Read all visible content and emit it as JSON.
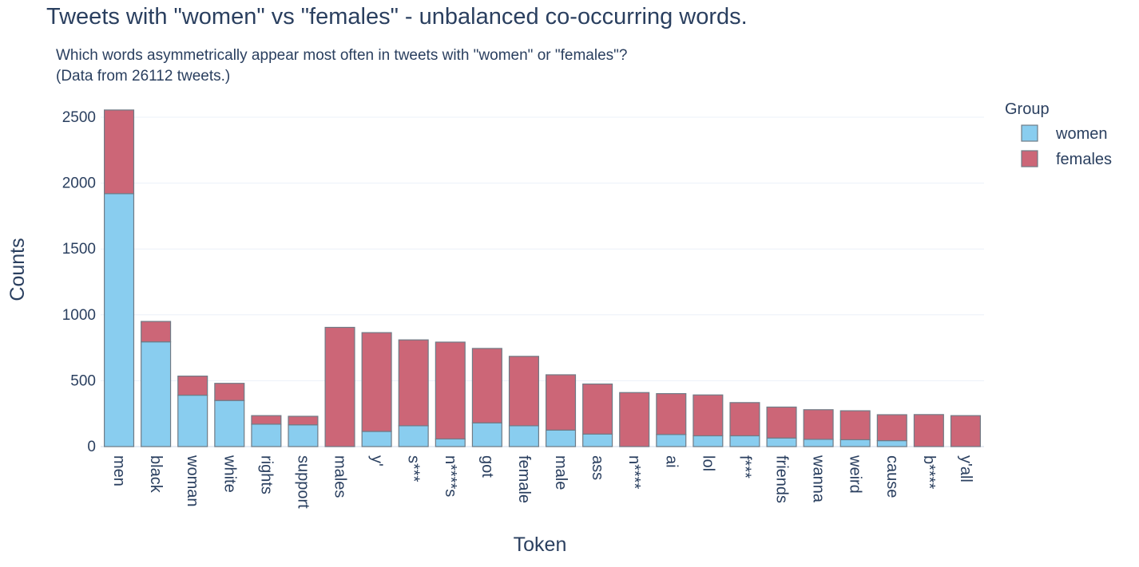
{
  "chart_data": {
    "type": "bar",
    "barmode": "stack",
    "title": "Tweets with \"women\" vs \"females\" - unbalanced co-occurring words.",
    "subtitle_lines": [
      "Which words asymmetrically appear most often in tweets with \"women\" or \"females\"?",
      "(Data from 26112 tweets.)"
    ],
    "xlabel": "Token",
    "ylabel": "Counts",
    "ylim": [
      0,
      2600
    ],
    "yticks": [
      0,
      500,
      1000,
      1500,
      2000,
      2500
    ],
    "grid": true,
    "legend": {
      "title": "Group",
      "placement": "top-right"
    },
    "categories": [
      "men",
      "black",
      "woman",
      "white",
      "rights",
      "support",
      "males",
      "y'",
      "s***",
      "n****s",
      "got",
      "female",
      "male",
      "ass",
      "n****",
      "ai",
      "lol",
      "f***",
      "friends",
      "wanna",
      "weird",
      "cause",
      "b****",
      "y'all"
    ],
    "series": [
      {
        "name": "women",
        "color": "#89CDEF",
        "values": [
          1920,
          795,
          390,
          350,
          170,
          165,
          0,
          115,
          158,
          58,
          180,
          158,
          125,
          95,
          0,
          92,
          82,
          82,
          65,
          55,
          52,
          45,
          0,
          0
        ]
      },
      {
        "name": "females",
        "color": "#CC6677",
        "values": [
          635,
          155,
          145,
          130,
          65,
          65,
          905,
          750,
          652,
          735,
          565,
          527,
          420,
          380,
          410,
          310,
          310,
          252,
          235,
          225,
          220,
          197,
          243,
          235
        ]
      }
    ]
  }
}
